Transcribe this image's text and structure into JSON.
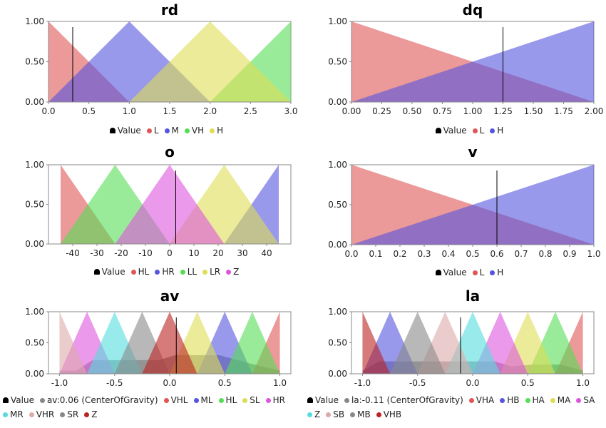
{
  "chart_data": [
    {
      "type": "area",
      "title": "rd",
      "xlim": [
        0,
        3
      ],
      "ylim": [
        0,
        1
      ],
      "xticks": [
        "0.0",
        "0.5",
        "1.0",
        "1.5",
        "2.0",
        "2.5",
        "3.0"
      ],
      "yticks": [
        "0.00",
        "0.50",
        "1.00"
      ],
      "value_marker": 0.3,
      "series": [
        {
          "name": "L",
          "color": "#e05555",
          "x": [
            0,
            0,
            1
          ],
          "y": [
            0,
            1,
            0
          ]
        },
        {
          "name": "M",
          "color": "#5555e0",
          "x": [
            0,
            1,
            2
          ],
          "y": [
            0,
            1,
            0
          ]
        },
        {
          "name": "VH",
          "color": "#55dd55",
          "x": [
            2,
            3,
            3
          ],
          "y": [
            0,
            1,
            0
          ]
        },
        {
          "name": "H",
          "color": "#dddd55",
          "x": [
            1,
            2,
            3
          ],
          "y": [
            0,
            1,
            0
          ]
        }
      ],
      "legend": [
        {
          "label": "Value",
          "type": "bell"
        },
        {
          "label": "L",
          "color": "#e05555"
        },
        {
          "label": "M",
          "color": "#5555e0"
        },
        {
          "label": "VH",
          "color": "#55dd55"
        },
        {
          "label": "H",
          "color": "#dddd55"
        }
      ]
    },
    {
      "type": "area",
      "title": "dq",
      "xlim": [
        0,
        2
      ],
      "ylim": [
        0,
        1
      ],
      "xticks": [
        "0.00",
        "0.25",
        "0.50",
        "0.75",
        "1.00",
        "1.25",
        "1.50",
        "1.75",
        "2.00"
      ],
      "yticks": [
        "0.00",
        "0.50",
        "1.00"
      ],
      "value_marker": 1.25,
      "series": [
        {
          "name": "L",
          "color": "#e05555",
          "x": [
            0,
            0,
            2
          ],
          "y": [
            0,
            1,
            0
          ]
        },
        {
          "name": "H",
          "color": "#5555e0",
          "x": [
            0,
            2,
            2
          ],
          "y": [
            0,
            1,
            0
          ]
        }
      ],
      "legend": [
        {
          "label": "Value",
          "type": "bell"
        },
        {
          "label": "L",
          "color": "#e05555"
        },
        {
          "label": "H",
          "color": "#5555e0"
        }
      ]
    },
    {
      "type": "area",
      "title": "o",
      "xlim": [
        -50,
        50
      ],
      "ylim": [
        0,
        1
      ],
      "xticks": [
        "-40",
        "-30",
        "-20",
        "-10",
        "0",
        "10",
        "20",
        "30",
        "40"
      ],
      "ytick_values": [
        0,
        0.5,
        1
      ],
      "yticks": [
        "0.00",
        "0.50",
        "1.00"
      ],
      "value_marker": 2.5,
      "series": [
        {
          "name": "HL",
          "color": "#e05555",
          "x": [
            -45,
            -45,
            -22.5
          ],
          "y": [
            0,
            1,
            0
          ]
        },
        {
          "name": "HR",
          "color": "#5555e0",
          "x": [
            22.5,
            45,
            45
          ],
          "y": [
            0,
            1,
            0
          ]
        },
        {
          "name": "LL",
          "color": "#55dd55",
          "x": [
            -45,
            -22.5,
            0
          ],
          "y": [
            0,
            1,
            0
          ]
        },
        {
          "name": "LR",
          "color": "#dddd55",
          "x": [
            0,
            22.5,
            45
          ],
          "y": [
            0,
            1,
            0
          ]
        },
        {
          "name": "Z",
          "color": "#dd55dd",
          "x": [
            -22.5,
            0,
            22.5
          ],
          "y": [
            0,
            1,
            0
          ]
        }
      ],
      "legend": [
        {
          "label": "Value",
          "type": "bell"
        },
        {
          "label": "HL",
          "color": "#e05555"
        },
        {
          "label": "HR",
          "color": "#5555e0"
        },
        {
          "label": "LL",
          "color": "#55dd55"
        },
        {
          "label": "LR",
          "color": "#dddd55"
        },
        {
          "label": "Z",
          "color": "#dd55dd"
        }
      ]
    },
    {
      "type": "area",
      "title": "v",
      "xlim": [
        0,
        1
      ],
      "ylim": [
        0,
        1
      ],
      "xticks": [
        "0.0",
        "0.1",
        "0.2",
        "0.3",
        "0.4",
        "0.5",
        "0.6",
        "0.7",
        "0.8",
        "0.9",
        "1.0"
      ],
      "yticks": [
        "0.00",
        "0.50",
        "1.00"
      ],
      "value_marker": 0.6,
      "series": [
        {
          "name": "L",
          "color": "#e05555",
          "x": [
            0,
            0,
            1
          ],
          "y": [
            0,
            1,
            0
          ]
        },
        {
          "name": "H",
          "color": "#5555e0",
          "x": [
            0,
            1,
            1
          ],
          "y": [
            0,
            1,
            0
          ]
        }
      ],
      "legend": [
        {
          "label": "Value",
          "type": "bell"
        },
        {
          "label": "L",
          "color": "#e05555"
        },
        {
          "label": "H",
          "color": "#5555e0"
        }
      ]
    },
    {
      "type": "area",
      "title": "av",
      "xlim": [
        -1.1,
        1.1
      ],
      "ylim": [
        0,
        1
      ],
      "xticks": [
        "-1.0",
        "-0.5",
        "0.0",
        "0.5",
        "1.0"
      ],
      "yticks": [
        "0.00",
        "0.50",
        "1.00"
      ],
      "value_marker": 0.06,
      "aggregate": {
        "name": "av:0.06 (CenterOfGravity)",
        "color": "#888888",
        "x": [
          -1.0,
          -0.85,
          -0.7,
          -0.3,
          -0.1,
          0.05,
          0.25,
          0.45,
          0.7,
          1.0
        ],
        "y": [
          0.05,
          0.05,
          0.22,
          0.22,
          0.22,
          0.3,
          0.3,
          0.3,
          0.18,
          0.05
        ]
      },
      "series": [
        {
          "name": "VHL",
          "color": "#e05555",
          "x": [
            0.75,
            1.0,
            1.0
          ],
          "y": [
            0,
            1,
            0
          ]
        },
        {
          "name": "ML",
          "color": "#5555e0",
          "x": [
            0.25,
            0.5,
            0.75
          ],
          "y": [
            0,
            1,
            0
          ]
        },
        {
          "name": "HL",
          "color": "#55dd55",
          "x": [
            0.5,
            0.75,
            1.0
          ],
          "y": [
            0,
            1,
            0
          ]
        },
        {
          "name": "SL",
          "color": "#dddd55",
          "x": [
            0.0,
            0.25,
            0.5
          ],
          "y": [
            0,
            1,
            0
          ]
        },
        {
          "name": "HR",
          "color": "#dd55dd",
          "x": [
            -1.0,
            -0.75,
            -0.5
          ],
          "y": [
            0,
            1,
            0
          ]
        },
        {
          "name": "MR",
          "color": "#55dddd",
          "x": [
            -0.75,
            -0.5,
            -0.25
          ],
          "y": [
            0,
            1,
            0
          ]
        },
        {
          "name": "VHR",
          "color": "#ddaaaa",
          "x": [
            -1.0,
            -1.0,
            -0.75
          ],
          "y": [
            0,
            1,
            0
          ]
        },
        {
          "name": "SR",
          "color": "#888888",
          "x": [
            -0.5,
            -0.25,
            0.0
          ],
          "y": [
            0,
            1,
            0
          ]
        },
        {
          "name": "Z",
          "color": "#bb2222",
          "x": [
            -0.25,
            0.0,
            0.25
          ],
          "y": [
            0,
            1,
            0
          ]
        }
      ],
      "legend_lines": [
        [
          {
            "label": "Value",
            "type": "bell"
          },
          {
            "label": "av:0.06 (CenterOfGravity)",
            "color": "#888888"
          },
          {
            "label": "VHL",
            "color": "#e05555"
          },
          {
            "label": "ML",
            "color": "#5555e0"
          },
          {
            "label": "HL",
            "color": "#55dd55"
          },
          {
            "label": "SL",
            "color": "#dddd55"
          },
          {
            "label": "HR",
            "color": "#dd55dd"
          }
        ],
        [
          {
            "label": "MR",
            "color": "#55dddd"
          },
          {
            "label": "VHR",
            "color": "#ddaaaa"
          },
          {
            "label": "SR",
            "color": "#888888"
          },
          {
            "label": "Z",
            "color": "#bb2222"
          }
        ]
      ]
    },
    {
      "type": "area",
      "title": "la",
      "xlim": [
        -1.1,
        1.1
      ],
      "ylim": [
        0,
        1
      ],
      "xticks": [
        "-1.0",
        "-0.5",
        "0.0",
        "0.5",
        "1.0"
      ],
      "yticks": [
        "0.00",
        "0.50",
        "1.00"
      ],
      "value_marker": -0.11,
      "aggregate": {
        "name": "la:-0.11 (CenterOfGravity)",
        "color": "#888888",
        "x": [
          -1.0,
          -0.85,
          -0.5,
          -0.25,
          0.0,
          0.2,
          0.35,
          0.55,
          0.8,
          1.0
        ],
        "y": [
          0.05,
          0.2,
          0.2,
          0.2,
          0.2,
          0.2,
          0.12,
          0.15,
          0.15,
          0.05
        ]
      },
      "series": [
        {
          "name": "VHA",
          "color": "#e05555",
          "x": [
            0.75,
            1.0,
            1.0
          ],
          "y": [
            0,
            1,
            0
          ]
        },
        {
          "name": "HB",
          "color": "#5555e0",
          "x": [
            -1.0,
            -0.75,
            -0.5
          ],
          "y": [
            0,
            1,
            0
          ]
        },
        {
          "name": "HA",
          "color": "#55dd55",
          "x": [
            0.5,
            0.75,
            1.0
          ],
          "y": [
            0,
            1,
            0
          ]
        },
        {
          "name": "MA",
          "color": "#dddd55",
          "x": [
            0.25,
            0.5,
            0.75
          ],
          "y": [
            0,
            1,
            0
          ]
        },
        {
          "name": "SA",
          "color": "#dd55dd",
          "x": [
            0.0,
            0.25,
            0.5
          ],
          "y": [
            0,
            1,
            0
          ]
        },
        {
          "name": "Z",
          "color": "#55dddd",
          "x": [
            -0.25,
            0.0,
            0.25
          ],
          "y": [
            0,
            1,
            0
          ]
        },
        {
          "name": "SB",
          "color": "#ddaaaa",
          "x": [
            -0.5,
            -0.25,
            0.0
          ],
          "y": [
            0,
            1,
            0
          ]
        },
        {
          "name": "MB",
          "color": "#888888",
          "x": [
            -0.75,
            -0.5,
            -0.25
          ],
          "y": [
            0,
            1,
            0
          ]
        },
        {
          "name": "VHB",
          "color": "#bb2222",
          "x": [
            -1.0,
            -1.0,
            -0.75
          ],
          "y": [
            0,
            1,
            0
          ]
        }
      ],
      "legend_lines": [
        [
          {
            "label": "Value",
            "type": "bell"
          },
          {
            "label": "la:-0.11 (CenterOfGravity)",
            "color": "#888888"
          },
          {
            "label": "VHA",
            "color": "#e05555"
          },
          {
            "label": "HB",
            "color": "#5555e0"
          },
          {
            "label": "HA",
            "color": "#55dd55"
          },
          {
            "label": "MA",
            "color": "#dddd55"
          },
          {
            "label": "SA",
            "color": "#dd55dd"
          }
        ],
        [
          {
            "label": "Z",
            "color": "#55dddd"
          },
          {
            "label": "SB",
            "color": "#ddaaaa"
          },
          {
            "label": "MB",
            "color": "#888888"
          },
          {
            "label": "VHB",
            "color": "#bb2222"
          }
        ]
      ]
    }
  ]
}
